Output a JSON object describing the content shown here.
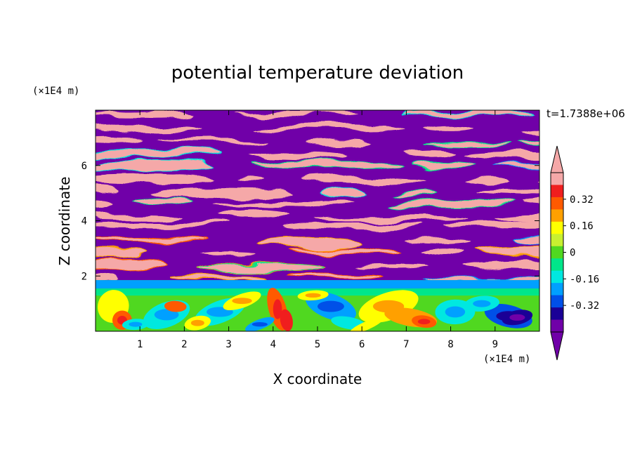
{
  "chart_data": {
    "type": "heatmap",
    "title": "potential temperature deviation",
    "xlabel": "X coordinate",
    "ylabel": "Z coordinate",
    "x_unit": "(×1E4 m)",
    "y_unit": "(×1E4 m)",
    "time_label": "t=1.7388e+06",
    "xlim": [
      0,
      10
    ],
    "ylim": [
      0,
      8
    ],
    "x_ticks": [
      1,
      2,
      3,
      4,
      5,
      6,
      7,
      8,
      9
    ],
    "y_ticks": [
      2,
      4,
      6
    ],
    "colorbar": {
      "levels": [
        -0.48,
        -0.4,
        -0.32,
        -0.24,
        -0.16,
        -0.08,
        0,
        0.08,
        0.16,
        0.24,
        0.32,
        0.4,
        0.48
      ],
      "colors": [
        "#7000a8",
        "#1a0096",
        "#0050e8",
        "#00a0ff",
        "#00e8e0",
        "#00e68a",
        "#50d820",
        "#c8f030",
        "#ffff00",
        "#ffa000",
        "#ff5a00",
        "#f01e1e",
        "#f5a8a8"
      ],
      "under_color": "#7000a8",
      "over_color": "#f5a8a8",
      "tick_labels": [
        "0.32",
        "0.16",
        "0",
        "-0.16",
        "-0.32"
      ]
    },
    "field_description_regions": [
      {
        "z_range": [
          2,
          8
        ],
        "pattern": "alternating layers",
        "values": [
          -0.5,
          0.5
        ]
      },
      {
        "z_range": [
          0,
          2
        ],
        "pattern": "turbulent eddies",
        "values": [
          -0.45,
          0.4
        ]
      }
    ]
  }
}
